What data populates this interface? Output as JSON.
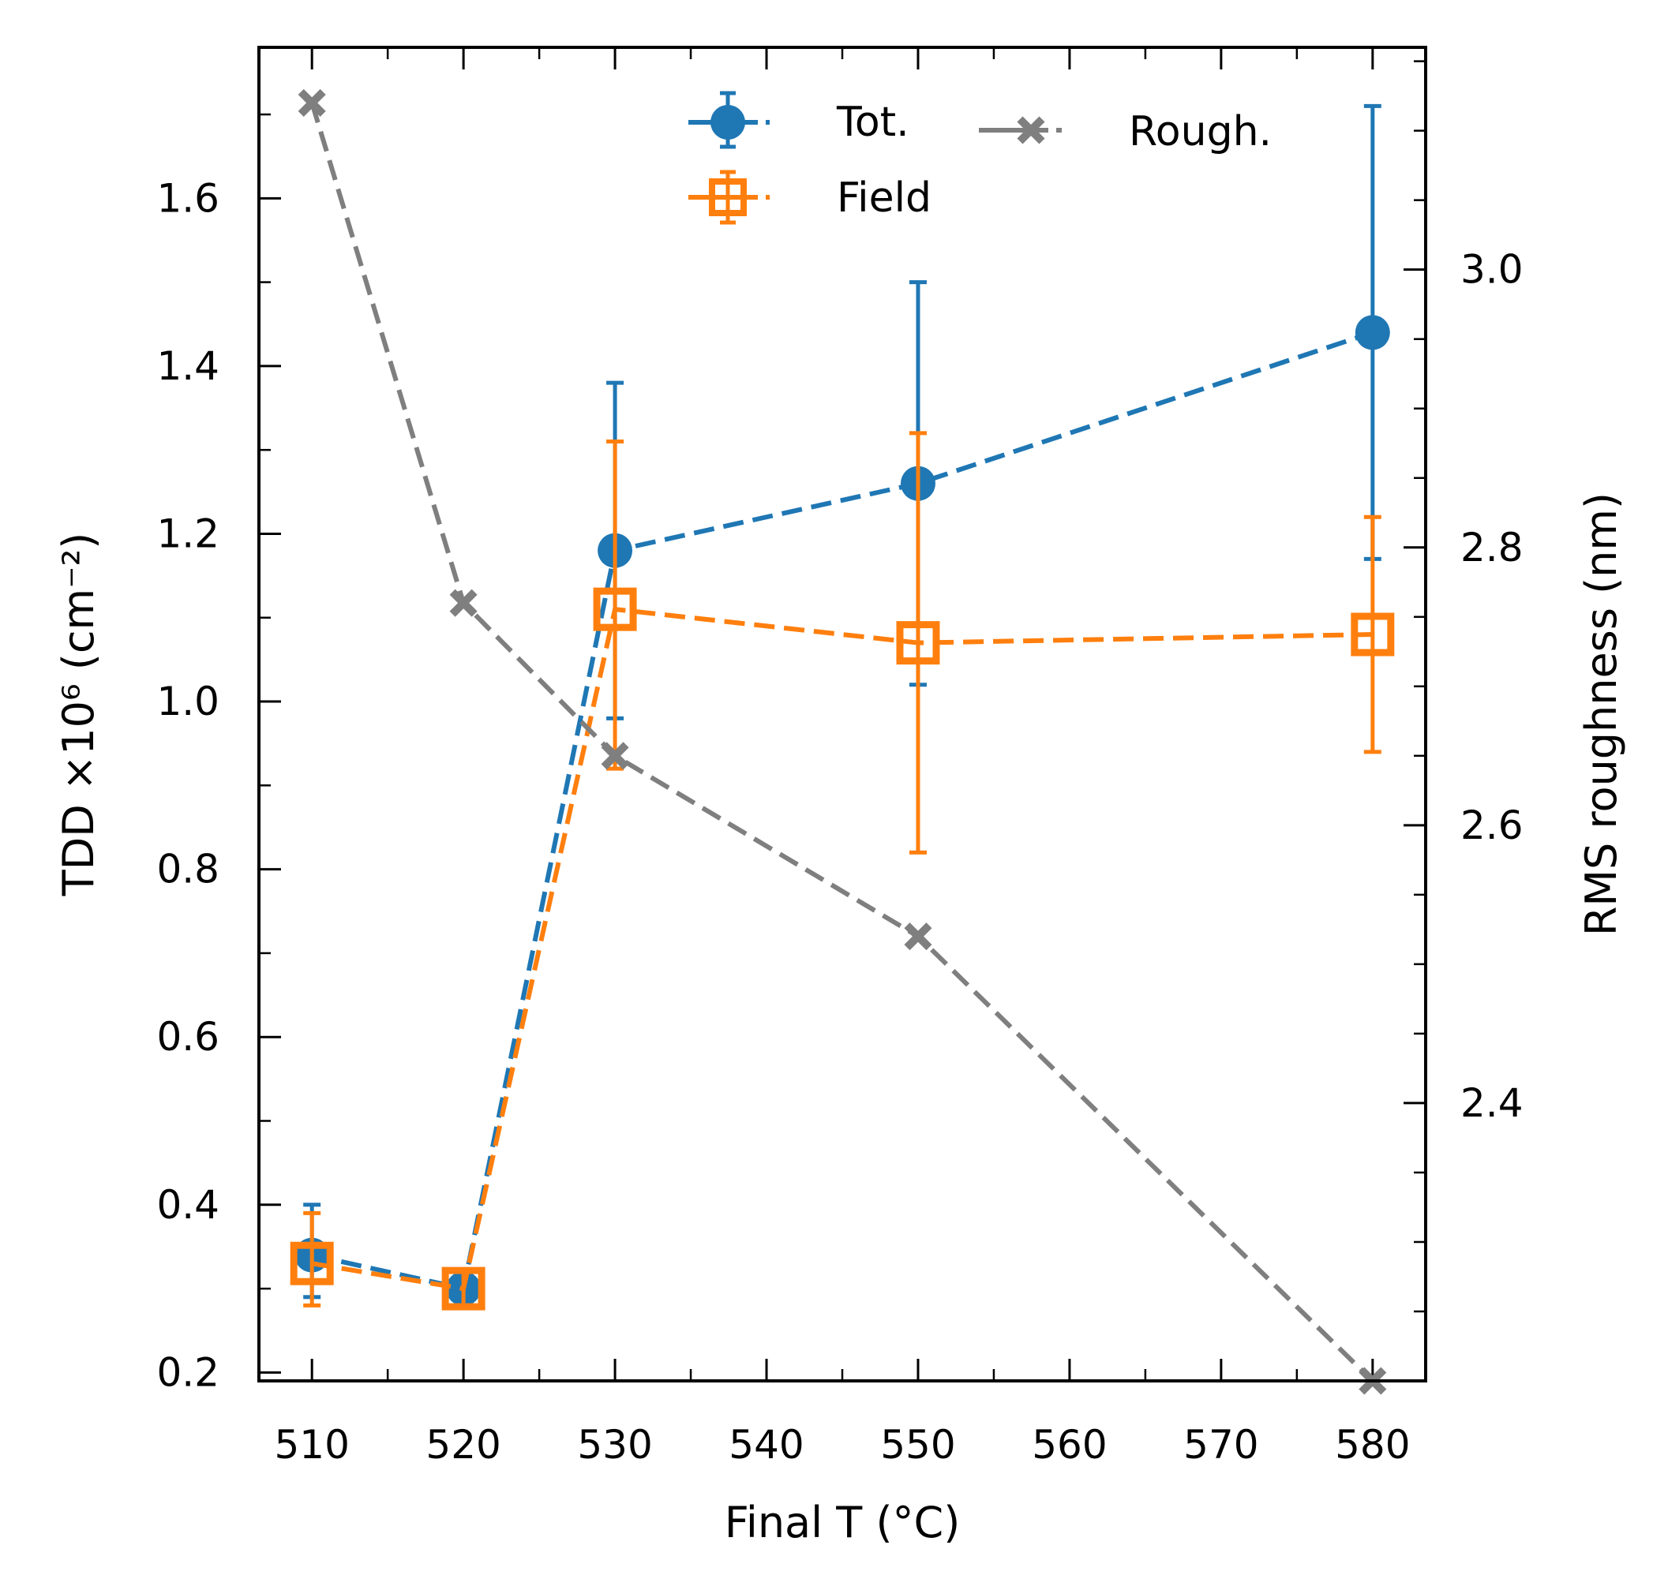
{
  "chart_data": {
    "type": "line",
    "title": "",
    "xlabel": "Final T (°C)",
    "ylabel": "TDD ×10⁶ (cm⁻²)",
    "y2label": "RMS roughness (nm)",
    "xlim": [
      506.5,
      583.5
    ],
    "ylim": [
      0.19,
      1.78
    ],
    "y2lim": [
      2.2,
      3.16
    ],
    "x_major_ticks": [
      510,
      520,
      530,
      540,
      550,
      560,
      570,
      580
    ],
    "x_tick_labels": [
      "510",
      "520",
      "530",
      "540",
      "550",
      "560",
      "570",
      "580"
    ],
    "y_major_ticks": [
      0.2,
      0.4,
      0.6,
      0.8,
      1.0,
      1.2,
      1.4,
      1.6
    ],
    "y_tick_labels": [
      "0.2",
      "0.4",
      "0.6",
      "0.8",
      "1.0",
      "1.2",
      "1.4",
      "1.6"
    ],
    "y2_major_ticks": [
      2.4,
      2.6,
      2.8,
      3.0
    ],
    "y2_tick_labels": [
      "2.4",
      "2.6",
      "2.8",
      "3.0"
    ],
    "legend_position": "top-center",
    "series": [
      {
        "name": "Tot.",
        "axis": "left",
        "color": "#1f77b4",
        "marker": "circle",
        "x": [
          510,
          520,
          530,
          550,
          580
        ],
        "values": [
          0.34,
          0.3,
          1.18,
          1.26,
          1.44
        ],
        "err_low": [
          0.29,
          0.29,
          0.98,
          1.02,
          1.17
        ],
        "err_high": [
          0.4,
          0.31,
          1.38,
          1.5,
          1.71
        ]
      },
      {
        "name": "Field",
        "axis": "left",
        "color": "#ff7f0e",
        "marker": "square-open",
        "x": [
          510,
          520,
          530,
          550,
          580
        ],
        "values": [
          0.33,
          0.3,
          1.11,
          1.07,
          1.08
        ],
        "err_low": [
          0.28,
          0.28,
          0.92,
          0.82,
          0.94
        ],
        "err_high": [
          0.39,
          0.32,
          1.31,
          1.32,
          1.22
        ]
      },
      {
        "name": "Rough.",
        "axis": "right",
        "color": "#7f7f7f",
        "marker": "x",
        "x": [
          510,
          520,
          530,
          550,
          580
        ],
        "values": [
          3.12,
          2.76,
          2.65,
          2.52,
          2.2
        ]
      }
    ]
  }
}
